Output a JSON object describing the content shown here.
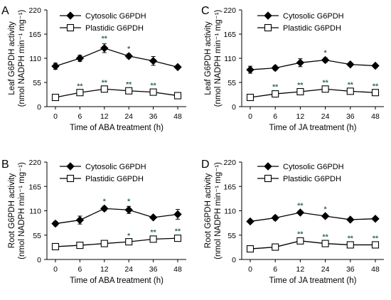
{
  "colors": {
    "axis": "#000000",
    "significance": "#2e6b4b",
    "cytosolic_marker": "#000000",
    "plastidic_marker": "#ffffff"
  },
  "chart_data": [
    {
      "panel": "A",
      "type": "line",
      "xlabel": "Time of  ABA treatment (h)",
      "ylabel_line1": "Leaf G6PDH activity",
      "ylabel_line2": "(nmol NADPH min⁻¹ mg⁻¹)",
      "ylim": [
        0,
        220
      ],
      "yticks": [
        "0",
        "55",
        "110",
        "165",
        "220"
      ],
      "categories": [
        "0",
        "6",
        "12",
        "24",
        "36",
        "48"
      ],
      "series": [
        {
          "name": "Cytosolic G6PDH",
          "marker": "diamond",
          "values": [
            92,
            110,
            133,
            115,
            104,
            90
          ],
          "errors": [
            7,
            7,
            10,
            5,
            10,
            3
          ],
          "sig": [
            "",
            "",
            "**",
            "*",
            "",
            ""
          ]
        },
        {
          "name": "Plastidic G6PDH",
          "marker": "square",
          "values": [
            21,
            32,
            40,
            36,
            33,
            25
          ],
          "errors": [
            3,
            3,
            3,
            3,
            3,
            4
          ],
          "sig": [
            "",
            "**",
            "**",
            "**",
            "**",
            ""
          ]
        }
      ]
    },
    {
      "panel": "C",
      "type": "line",
      "xlabel": "Time of JA treatment (h)",
      "ylabel_line1": "Leaf G6PDH activity",
      "ylabel_line2": "(nmol NADPH min⁻¹ mg⁻¹)",
      "ylim": [
        0,
        220
      ],
      "yticks": [
        "0",
        "55",
        "110",
        "165",
        "220"
      ],
      "categories": [
        "0",
        "6",
        "12",
        "24",
        "36",
        "48"
      ],
      "series": [
        {
          "name": "Cytosolic G6PDH",
          "marker": "diamond",
          "values": [
            84,
            88,
            100,
            106,
            96,
            93
          ],
          "errors": [
            8,
            5,
            9,
            5,
            3,
            4
          ],
          "sig": [
            "",
            "",
            "",
            "*",
            "",
            ""
          ]
        },
        {
          "name": "Plastidic G6PDH",
          "marker": "square",
          "values": [
            21,
            29,
            34,
            40,
            35,
            32
          ],
          "errors": [
            3,
            4,
            3,
            3,
            3,
            3
          ],
          "sig": [
            "",
            "**",
            "**",
            "**",
            "**",
            "**"
          ]
        }
      ]
    },
    {
      "panel": "B",
      "type": "line",
      "xlabel": "Time of ABA treatment (h)",
      "ylabel_line1": "Root G6PDH activity",
      "ylabel_line2": "(nmol NADPH min⁻¹ mg⁻¹)",
      "ylim": [
        0,
        220
      ],
      "yticks": [
        "0",
        "55",
        "110",
        "165",
        "220"
      ],
      "categories": [
        "0",
        "6",
        "12",
        "24",
        "36",
        "48"
      ],
      "series": [
        {
          "name": "Cytosolic G6PDH",
          "marker": "diamond",
          "values": [
            81,
            89,
            115,
            112,
            95,
            102
          ],
          "errors": [
            5,
            9,
            5,
            8,
            2,
            11
          ],
          "sig": [
            "",
            "",
            "*",
            "*",
            "",
            ""
          ]
        },
        {
          "name": "Plastidic G6PDH",
          "marker": "square",
          "values": [
            29,
            32,
            36,
            40,
            46,
            48
          ],
          "errors": [
            2,
            2,
            2,
            2,
            4,
            4
          ],
          "sig": [
            "",
            "",
            "",
            "*",
            "**",
            "**"
          ]
        }
      ]
    },
    {
      "panel": "D",
      "type": "line",
      "xlabel": "Time of JA treatment (h)",
      "ylabel_line1": "Root G6PDH activity",
      "ylabel_line2": "(nmol NADPH min⁻¹ mg⁻¹)",
      "ylim": [
        0,
        220
      ],
      "yticks": [
        "0",
        "55",
        "110",
        "165",
        "220"
      ],
      "categories": [
        "0",
        "6",
        "12",
        "24",
        "36",
        "48"
      ],
      "series": [
        {
          "name": "Cytosolic G6PDH",
          "marker": "diamond",
          "values": [
            86,
            94,
            106,
            98,
            90,
            92
          ],
          "errors": [
            3,
            5,
            4,
            4,
            2,
            3
          ],
          "sig": [
            "",
            "",
            "**",
            "*",
            "",
            ""
          ]
        },
        {
          "name": "Plastidic G6PDH",
          "marker": "square",
          "values": [
            24,
            28,
            42,
            36,
            33,
            33
          ],
          "errors": [
            2,
            2,
            4,
            3,
            3,
            3
          ],
          "sig": [
            "",
            "",
            "**",
            "**",
            "**",
            "**"
          ]
        }
      ]
    }
  ]
}
